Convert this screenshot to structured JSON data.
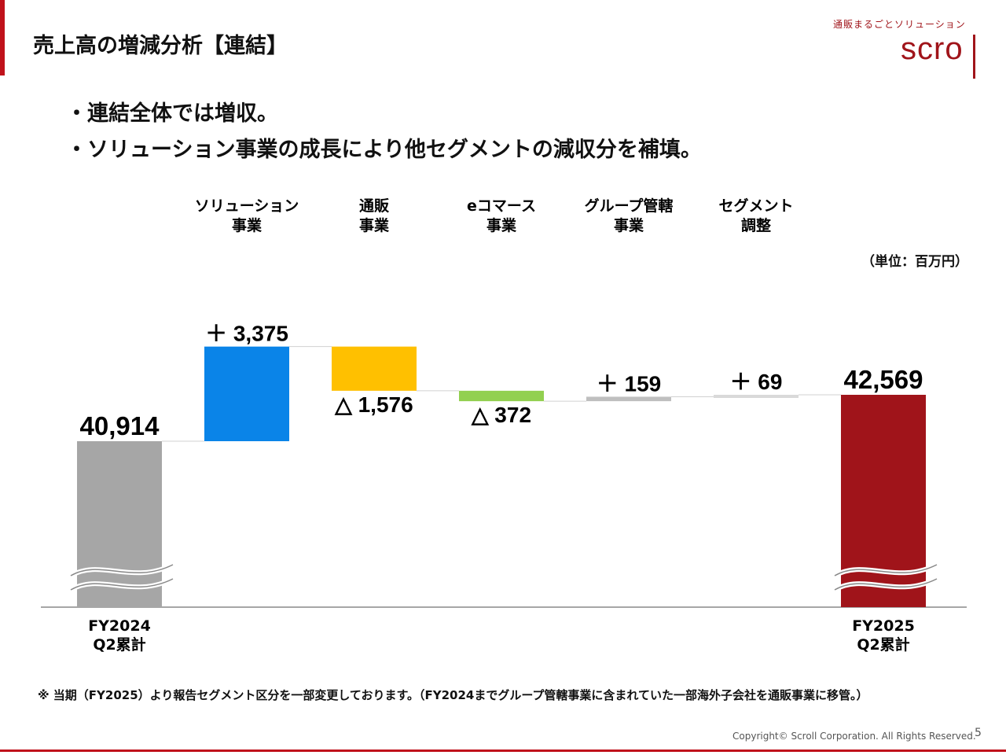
{
  "header": {
    "title": "売上高の増減分析【連結】",
    "logo_tagline": "通販まるごとソリューション",
    "logo_text": "scroll"
  },
  "bullets": [
    "・連結全体では増収。",
    "・ソリューション事業の成長により他セグメントの減収分を補填。"
  ],
  "unit_label": "（単位：百万円）",
  "note": "※ 当期（FY2025）より報告セグメント区分を一部変更しております。（FY2024までグループ管轄事業に含まれていた一部海外子会社を通販事業に移管。）",
  "footer": {
    "copyright": "Copyright© Scroll Corporation. All Rights Reserved.",
    "page": "5"
  },
  "chart_data": {
    "type": "waterfall",
    "categories": [
      [
        "FY2024",
        "Q2累計"
      ],
      [
        "ソリューション",
        "事業"
      ],
      [
        "通販",
        "事業"
      ],
      [
        "eコマース",
        "事業"
      ],
      [
        "グループ管轄",
        "事業"
      ],
      [
        "セグメント",
        "調整"
      ],
      [
        "FY2025",
        "Q2累計"
      ]
    ],
    "values": [
      40914,
      3375,
      -1576,
      -372,
      159,
      69,
      42569
    ],
    "kinds": [
      "total",
      "delta",
      "delta",
      "delta",
      "delta",
      "delta",
      "total"
    ],
    "labels": [
      "40,914",
      "＋ 3,375",
      "△ 1,576",
      "△ 372",
      "＋ 159",
      "＋ 69",
      "42,569"
    ],
    "colors": [
      "#a6a6a6",
      "#0a84e8",
      "#ffc000",
      "#92d050",
      "#bfbfbf",
      "#d9d9d9",
      "#a0141a"
    ],
    "axis_break": true
  }
}
